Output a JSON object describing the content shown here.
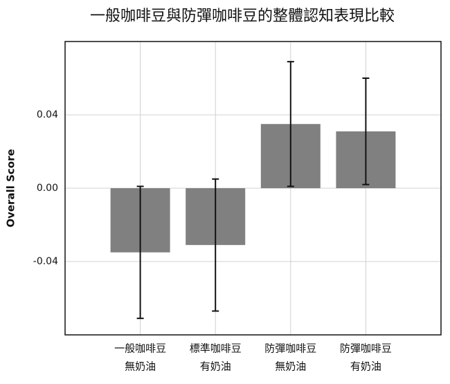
{
  "chart_data": {
    "type": "bar",
    "title": "一般咖啡豆與防彈咖啡豆的整體認知表現比較",
    "ylabel": "Overall Score",
    "categories": [
      [
        "一般咖啡豆",
        "無奶油"
      ],
      [
        "標準咖啡豆",
        "有奶油"
      ],
      [
        "防彈咖啡豆",
        "無奶油"
      ],
      [
        "防彈咖啡豆",
        "有奶油"
      ]
    ],
    "values": [
      -0.035,
      -0.031,
      0.035,
      0.031
    ],
    "errors": [
      0.036,
      0.036,
      0.034,
      0.029
    ],
    "color": "#808080",
    "ylim": [
      -0.08,
      0.08
    ],
    "yticks": [
      -0.04,
      {
        "value": 0,
        "label": "0.00"
      },
      0.04
    ],
    "grid": true
  }
}
